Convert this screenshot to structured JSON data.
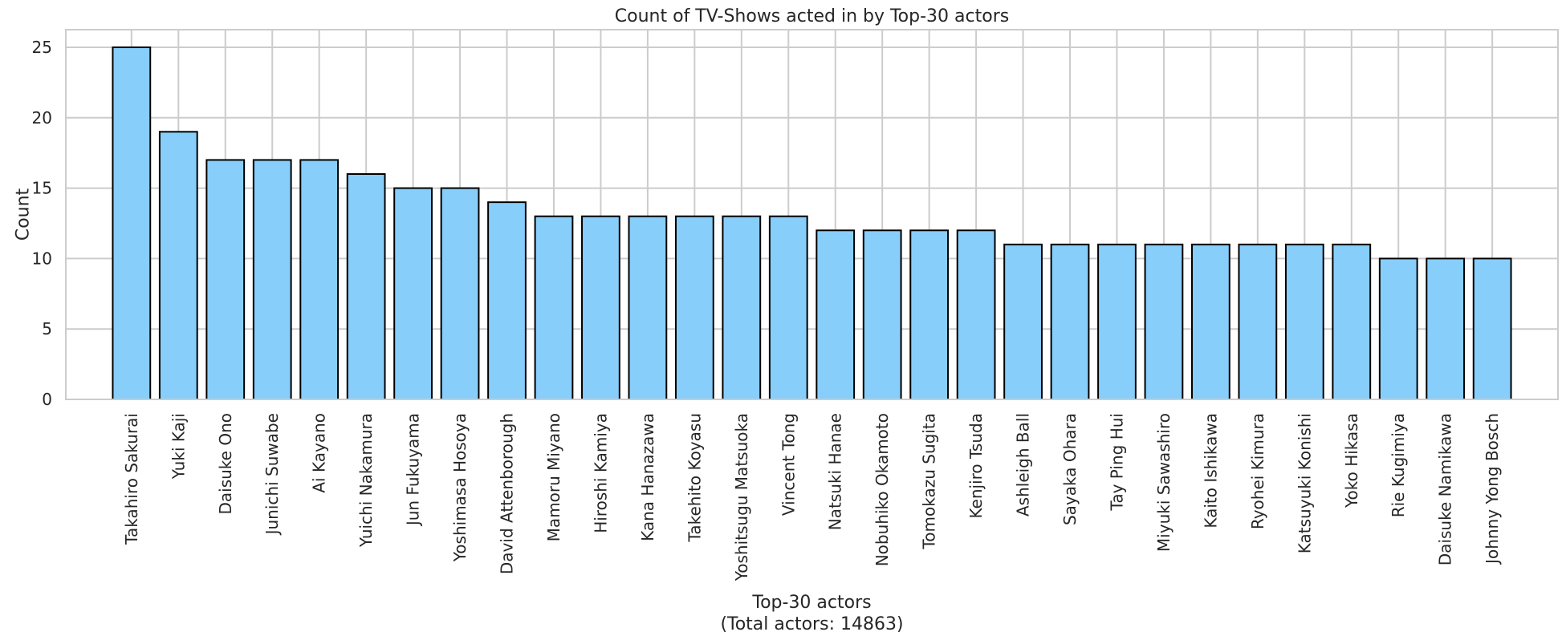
{
  "chart_data": {
    "type": "bar",
    "title": "Count of TV-Shows acted in by Top-30 actors",
    "xlabel": "Top-30 actors",
    "xlabel_note": "(Total actors: 14863)",
    "ylabel": "Count",
    "ylim": [
      0,
      26.25
    ],
    "yticks": [
      0,
      5,
      10,
      15,
      20,
      25
    ],
    "grid": true,
    "legend": "none",
    "colors": {
      "bar_fill": "#87CEFA",
      "bar_edge": "#000000",
      "grid": "#cccccc",
      "frame": "#cccccc"
    },
    "categories": [
      "Takahiro Sakurai",
      "Yuki Kaji",
      "Daisuke Ono",
      "Junichi Suwabe",
      "Ai Kayano",
      "Yuichi Nakamura",
      "Jun Fukuyama",
      "Yoshimasa Hosoya",
      "David Attenborough",
      "Mamoru Miyano",
      "Hiroshi Kamiya",
      "Kana Hanazawa",
      "Takehito Koyasu",
      "Yoshitsugu Matsuoka",
      "Vincent Tong",
      "Natsuki Hanae",
      "Nobuhiko Okamoto",
      "Tomokazu Sugita",
      "Kenjiro Tsuda",
      "Ashleigh Ball",
      "Sayaka Ohara",
      "Tay Ping Hui",
      "Miyuki Sawashiro",
      "Kaito Ishikawa",
      "Ryohei Kimura",
      "Katsuyuki Konishi",
      "Yoko Hikasa",
      "Rie Kugimiya",
      "Daisuke Namikawa",
      "Johnny Yong Bosch"
    ],
    "values": [
      25,
      19,
      17,
      17,
      17,
      16,
      15,
      15,
      14,
      13,
      13,
      13,
      13,
      13,
      13,
      12,
      12,
      12,
      12,
      11,
      11,
      11,
      11,
      11,
      11,
      11,
      11,
      10,
      10,
      10
    ]
  }
}
